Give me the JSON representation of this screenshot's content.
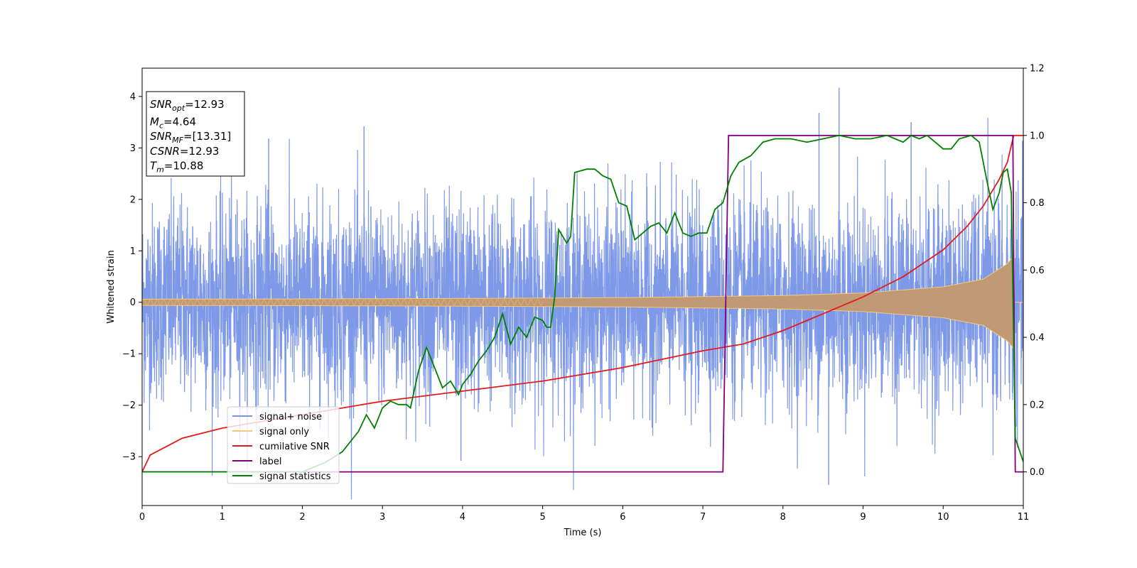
{
  "chart_data": {
    "type": "line",
    "xlabel": "Time (s)",
    "ylabel": "Whitened strain",
    "xlim": [
      0,
      11
    ],
    "ylim_left": [
      -3.95,
      4.55
    ],
    "ylim_right": [
      -0.1,
      1.2
    ],
    "x_ticks": [
      "0",
      "1",
      "2",
      "3",
      "4",
      "5",
      "6",
      "7",
      "8",
      "9",
      "10",
      "11"
    ],
    "y_left_ticks": [
      "−3",
      "−2",
      "−1",
      "0",
      "1",
      "2",
      "3",
      "4"
    ],
    "y_right_ticks": [
      "0.0",
      "0.2",
      "0.4",
      "0.6",
      "0.8",
      "1.0",
      "1.2"
    ],
    "grid": false,
    "legend_position": "lower-left",
    "annotation": [
      {
        "base": "SNR",
        "sub": "opt",
        "value": "=12.93"
      },
      {
        "base": "M",
        "sub": "c",
        "value": "=4.64"
      },
      {
        "base": "SNR",
        "sub": "MF",
        "value": "=[13.31]"
      },
      {
        "base": "CSNR",
        "sub": "",
        "value": "=12.93"
      },
      {
        "base": "T",
        "sub": "m",
        "value": "=10.88"
      }
    ],
    "series": [
      {
        "name": "signal+ noise",
        "color": "#7893e8",
        "axis": "left",
        "description_values": {
          "envelope_upper": [
            [
              0,
              1.3
            ],
            [
              5,
              1.3
            ],
            [
              8,
              1.35
            ],
            [
              10,
              1.4
            ],
            [
              10.8,
              1.6
            ],
            [
              11,
              1.3
            ]
          ],
          "spikes": [
            [
              2.77,
              3.42
            ],
            [
              8.45,
              3.68
            ],
            [
              8.7,
              4.17
            ],
            [
              9.6,
              3.5
            ],
            [
              1.58,
              3.18
            ],
            [
              8.57,
              -3.55
            ],
            [
              3.98,
              -3.08
            ]
          ]
        }
      },
      {
        "name": "signal only",
        "color": "#f7c87a",
        "axis": "left",
        "envelope": [
          [
            0,
            0.06
          ],
          [
            2,
            0.065
          ],
          [
            4,
            0.075
          ],
          [
            6,
            0.09
          ],
          [
            8,
            0.13
          ],
          [
            9,
            0.18
          ],
          [
            10,
            0.3
          ],
          [
            10.5,
            0.45
          ],
          [
            10.8,
            0.75
          ],
          [
            10.88,
            0.9
          ],
          [
            10.9,
            0
          ]
        ]
      },
      {
        "name": "cumilative SNR",
        "color": "#e41a1c",
        "axis": "right",
        "points": [
          [
            0,
            0.0
          ],
          [
            0.1,
            0.05
          ],
          [
            0.5,
            0.1
          ],
          [
            1,
            0.13
          ],
          [
            2,
            0.17
          ],
          [
            3,
            0.21
          ],
          [
            4,
            0.24
          ],
          [
            5,
            0.27
          ],
          [
            6,
            0.31
          ],
          [
            7,
            0.36
          ],
          [
            7.5,
            0.38
          ],
          [
            8,
            0.42
          ],
          [
            8.5,
            0.47
          ],
          [
            9,
            0.52
          ],
          [
            9.5,
            0.58
          ],
          [
            10,
            0.66
          ],
          [
            10.3,
            0.73
          ],
          [
            10.5,
            0.79
          ],
          [
            10.7,
            0.87
          ],
          [
            10.8,
            0.92
          ],
          [
            10.88,
            1.0
          ],
          [
            11,
            1.0
          ]
        ]
      },
      {
        "name": "label",
        "color": "#800080",
        "axis": "right",
        "points": [
          [
            0,
            0
          ],
          [
            7.25,
            0
          ],
          [
            7.32,
            1
          ],
          [
            10.87,
            1
          ],
          [
            10.9,
            0
          ],
          [
            11,
            0
          ]
        ]
      },
      {
        "name": "signal statistics",
        "color": "#008000",
        "axis": "right",
        "points": [
          [
            0,
            0
          ],
          [
            2.0,
            0.0
          ],
          [
            2.1,
            0.01
          ],
          [
            2.3,
            0.03
          ],
          [
            2.5,
            0.06
          ],
          [
            2.6,
            0.09
          ],
          [
            2.7,
            0.12
          ],
          [
            2.8,
            0.17
          ],
          [
            2.9,
            0.13
          ],
          [
            3.0,
            0.19
          ],
          [
            3.1,
            0.21
          ],
          [
            3.2,
            0.2
          ],
          [
            3.3,
            0.2
          ],
          [
            3.35,
            0.19
          ],
          [
            3.45,
            0.3
          ],
          [
            3.55,
            0.37
          ],
          [
            3.65,
            0.31
          ],
          [
            3.75,
            0.25
          ],
          [
            3.85,
            0.27
          ],
          [
            3.95,
            0.23
          ],
          [
            4.0,
            0.26
          ],
          [
            4.1,
            0.29
          ],
          [
            4.2,
            0.33
          ],
          [
            4.3,
            0.36
          ],
          [
            4.4,
            0.4
          ],
          [
            4.5,
            0.47
          ],
          [
            4.6,
            0.38
          ],
          [
            4.7,
            0.43
          ],
          [
            4.8,
            0.4
          ],
          [
            4.9,
            0.46
          ],
          [
            5.0,
            0.45
          ],
          [
            5.05,
            0.43
          ],
          [
            5.1,
            0.43
          ],
          [
            5.15,
            0.52
          ],
          [
            5.2,
            0.72
          ],
          [
            5.3,
            0.68
          ],
          [
            5.35,
            0.7
          ],
          [
            5.4,
            0.89
          ],
          [
            5.55,
            0.9
          ],
          [
            5.65,
            0.9
          ],
          [
            5.75,
            0.88
          ],
          [
            5.85,
            0.87
          ],
          [
            5.95,
            0.8
          ],
          [
            6.05,
            0.79
          ],
          [
            6.15,
            0.69
          ],
          [
            6.25,
            0.71
          ],
          [
            6.35,
            0.73
          ],
          [
            6.45,
            0.74
          ],
          [
            6.55,
            0.71
          ],
          [
            6.65,
            0.77
          ],
          [
            6.75,
            0.71
          ],
          [
            6.85,
            0.7
          ],
          [
            6.95,
            0.71
          ],
          [
            7.05,
            0.71
          ],
          [
            7.15,
            0.78
          ],
          [
            7.25,
            0.8
          ],
          [
            7.35,
            0.88
          ],
          [
            7.45,
            0.92
          ],
          [
            7.6,
            0.94
          ],
          [
            7.75,
            0.98
          ],
          [
            7.9,
            0.99
          ],
          [
            8.1,
            0.99
          ],
          [
            8.3,
            0.98
          ],
          [
            8.5,
            0.99
          ],
          [
            8.7,
            1.0
          ],
          [
            8.9,
            0.99
          ],
          [
            9.1,
            0.99
          ],
          [
            9.3,
            1.0
          ],
          [
            9.4,
            0.99
          ],
          [
            9.5,
            0.98
          ],
          [
            9.6,
            1.0
          ],
          [
            9.7,
            0.99
          ],
          [
            9.8,
            1.0
          ],
          [
            9.9,
            0.98
          ],
          [
            10.0,
            0.96
          ],
          [
            10.1,
            0.96
          ],
          [
            10.2,
            0.99
          ],
          [
            10.35,
            1.0
          ],
          [
            10.45,
            0.98
          ],
          [
            10.55,
            0.86
          ],
          [
            10.62,
            0.78
          ],
          [
            10.7,
            0.83
          ],
          [
            10.75,
            0.89
          ],
          [
            10.8,
            0.9
          ],
          [
            10.85,
            0.83
          ],
          [
            10.9,
            0.1
          ],
          [
            11,
            0.03
          ]
        ]
      }
    ]
  }
}
